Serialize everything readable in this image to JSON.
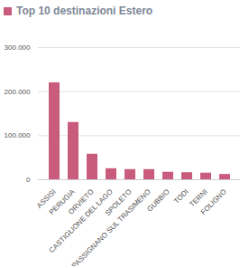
{
  "chart_data": {
    "type": "bar",
    "title": "Top 10 destinazioni Estero",
    "categories": [
      "ASSISI",
      "PERUGIA",
      "ORVIETO",
      "CASTIGLIONE DEL LAGO",
      "SPOLETO",
      "PASSIGNANO SUL TRASIMENO",
      "GUBBIO",
      "TODI",
      "TERNI",
      "FOLIGNO"
    ],
    "values": [
      220000,
      130000,
      58000,
      25000,
      23000,
      23000,
      17000,
      16000,
      15000,
      12000
    ],
    "color": "#c95b7d",
    "ylim": [
      0,
      300000
    ],
    "yticks": [
      0,
      {
        "value": 100000,
        "label": "100.000"
      },
      {
        "value": 200000,
        "label": "200.000"
      },
      {
        "value": 300000,
        "label": "300.000"
      }
    ],
    "grid": true
  }
}
